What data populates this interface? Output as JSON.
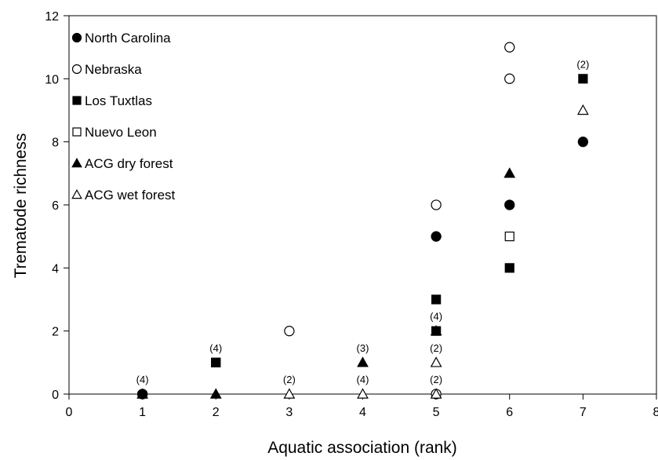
{
  "chart_data": {
    "type": "scatter",
    "title": "",
    "xlabel": "Aquatic association (rank)",
    "ylabel": "Trematode richness",
    "xlim": [
      0,
      8
    ],
    "ylim": [
      0,
      12
    ],
    "xticks": [
      "0",
      "1",
      "2",
      "3",
      "4",
      "5",
      "6",
      "7",
      "8"
    ],
    "yticks": [
      "0",
      "2",
      "4",
      "6",
      "8",
      "10",
      "12"
    ],
    "grid": false,
    "legend_position": "top-left",
    "series": [
      {
        "name": "North Carolina",
        "marker": "circle",
        "filled": true,
        "points": [
          [
            1,
            0
          ],
          [
            5,
            5
          ],
          [
            6,
            6
          ],
          [
            7,
            8
          ]
        ]
      },
      {
        "name": "Nebraska",
        "marker": "circle",
        "filled": false,
        "points": [
          [
            1,
            0
          ],
          [
            3,
            2
          ],
          [
            5,
            0
          ],
          [
            5,
            6
          ],
          [
            6,
            10
          ],
          [
            6,
            11
          ]
        ]
      },
      {
        "name": "Los Tuxtlas",
        "marker": "square",
        "filled": true,
        "points": [
          [
            2,
            1
          ],
          [
            5,
            2
          ],
          [
            5,
            3
          ],
          [
            6,
            4
          ],
          [
            7,
            10
          ]
        ]
      },
      {
        "name": "Nuevo Leon",
        "marker": "square",
        "filled": false,
        "points": [
          [
            2,
            1
          ],
          [
            6,
            5
          ]
        ]
      },
      {
        "name": "ACG dry forest",
        "marker": "triangle",
        "filled": true,
        "points": [
          [
            1,
            0
          ],
          [
            2,
            0
          ],
          [
            4,
            1
          ],
          [
            5,
            2
          ],
          [
            6,
            7
          ]
        ]
      },
      {
        "name": "ACG wet forest",
        "marker": "triangle",
        "filled": false,
        "points": [
          [
            3,
            0
          ],
          [
            4,
            0
          ],
          [
            5,
            0
          ],
          [
            5,
            1
          ],
          [
            7,
            9
          ]
        ]
      }
    ],
    "annotations": [
      {
        "text": "(4)",
        "x": 1,
        "y": 0
      },
      {
        "text": "(4)",
        "x": 2,
        "y": 1
      },
      {
        "text": "(2)",
        "x": 3,
        "y": 0
      },
      {
        "text": "(3)",
        "x": 4,
        "y": 1
      },
      {
        "text": "(4)",
        "x": 4,
        "y": 0
      },
      {
        "text": "(4)",
        "x": 5,
        "y": 2
      },
      {
        "text": "(2)",
        "x": 5,
        "y": 1
      },
      {
        "text": "(2)",
        "x": 5,
        "y": 0
      },
      {
        "text": "(2)",
        "x": 7,
        "y": 10
      }
    ]
  }
}
